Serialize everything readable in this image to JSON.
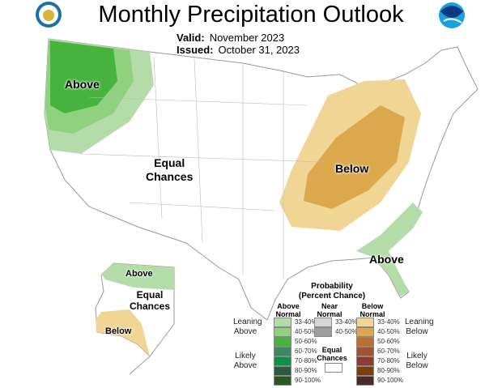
{
  "header": {
    "title": "Monthly Precipitation Outlook",
    "valid_label": "Valid:",
    "valid_value": "November 2023",
    "issued_label": "Issued:",
    "issued_value": "October 31, 2023",
    "logo_left": "U.S. Department of Commerce seal",
    "logo_right": "NOAA"
  },
  "map_labels": {
    "nw": "Above",
    "east": "Below",
    "se": "Above",
    "center_line1": "Equal",
    "center_line2": "Chances",
    "ak_above": "Above",
    "ak_equal1": "Equal",
    "ak_equal2": "Chances",
    "ak_below": "Below"
  },
  "legend": {
    "title1": "Probability",
    "title2": "(Percent Chance)",
    "above_header": [
      "Above",
      "Normal"
    ],
    "near_header": [
      "Near",
      "Normal"
    ],
    "below_header": [
      "Below",
      "Normal"
    ],
    "leaning_above": [
      "Leaning",
      "Above"
    ],
    "likely_above": [
      "Likely",
      "Above"
    ],
    "leaning_below": [
      "Leaning",
      "Below"
    ],
    "likely_below": [
      "Likely",
      "Below"
    ],
    "equal": [
      "Equal",
      "Chances"
    ],
    "above": [
      {
        "range": "33-40%",
        "color": "#b3dca8"
      },
      {
        "range": "40-50%",
        "color": "#8fd17e"
      },
      {
        "range": "50-60%",
        "color": "#46b33c"
      },
      {
        "range": "60-70%",
        "color": "#3d8a5e"
      },
      {
        "range": "70-80%",
        "color": "#0a9447"
      },
      {
        "range": "80-90%",
        "color": "#2c5a40"
      },
      {
        "range": "90-100%",
        "color": "#285a1e"
      }
    ],
    "near": [
      {
        "range": "33-40%",
        "color": "#d6d6d6"
      },
      {
        "range": "40-50%",
        "color": "#9e9e9e"
      }
    ],
    "below": [
      {
        "range": "33-40%",
        "color": "#f1d595"
      },
      {
        "range": "40-50%",
        "color": "#dba84c"
      },
      {
        "range": "50-60%",
        "color": "#c06d32"
      },
      {
        "range": "60-70%",
        "color": "#a5532f"
      },
      {
        "range": "70-80%",
        "color": "#8f3c2f"
      },
      {
        "range": "80-90%",
        "color": "#7a3f0b"
      },
      {
        "range": "90-100%",
        "color": "#4d2a2a"
      }
    ]
  }
}
